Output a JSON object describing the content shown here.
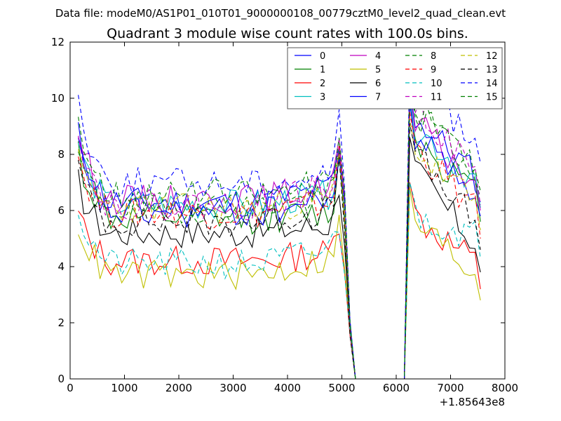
{
  "chart_data": {
    "type": "line",
    "suptitle": "Data file: modeM0/AS1P01_010T01_9000000108_00779cztM0_level2_quad_clean.evt",
    "title": "Quadrant 3 module wise count rates with 100.0s bins.",
    "xlabel": "",
    "ylabel": "",
    "x_offset_label": "+1.85643e8",
    "xlim": [
      0,
      8000
    ],
    "ylim": [
      0,
      12
    ],
    "x_ticks": [
      0,
      1000,
      2000,
      3000,
      4000,
      5000,
      6000,
      7000,
      8000
    ],
    "y_ticks": [
      0,
      2,
      4,
      6,
      8,
      10,
      12
    ],
    "legend_position": "upper-right",
    "x": [
      150,
      250,
      350,
      450,
      550,
      650,
      750,
      850,
      950,
      1050,
      1150,
      1250,
      1350,
      1450,
      1550,
      1650,
      1750,
      1850,
      1950,
      2050,
      2150,
      2250,
      2350,
      2450,
      2550,
      2650,
      2750,
      2850,
      2950,
      3050,
      3150,
      3250,
      3350,
      3450,
      3550,
      3650,
      3750,
      3850,
      3950,
      4050,
      4150,
      4250,
      4350,
      4450,
      4550,
      4650,
      4750,
      4850,
      4950,
      5050,
      5150,
      5250,
      5350,
      5450,
      5550,
      5650,
      5750,
      5850,
      5950,
      6050,
      6150,
      6250,
      6350,
      6450,
      6550,
      6650,
      6750,
      6850,
      6950,
      7050,
      7150,
      7250,
      7350,
      7450,
      7550
    ],
    "series": [
      {
        "name": "0",
        "color": "#0000ff",
        "style": "solid",
        "start": 8.7,
        "base": 6.3,
        "late": 6.8,
        "pre": 8.3,
        "peak": 10.5,
        "end": 6.3,
        "seed": 11
      },
      {
        "name": "1",
        "color": "#008000",
        "style": "solid",
        "start": 8.2,
        "base": 5.7,
        "late": 5.9,
        "pre": 7.8,
        "peak": 9.8,
        "end": 5.6,
        "seed": 12
      },
      {
        "name": "2",
        "color": "#ff0000",
        "style": "solid",
        "start": 5.9,
        "base": 4.2,
        "late": 4.5,
        "pre": 5.7,
        "peak": 7.0,
        "end": 3.2,
        "seed": 13
      },
      {
        "name": "3",
        "color": "#00bfbf",
        "style": "solid",
        "start": 8.5,
        "base": 6.2,
        "late": 6.6,
        "pre": 8.1,
        "peak": 10.2,
        "end": 6.1,
        "seed": 14
      },
      {
        "name": "4",
        "color": "#bf00bf",
        "style": "solid",
        "start": 8.9,
        "base": 6.4,
        "late": 6.9,
        "pre": 8.5,
        "peak": 10.3,
        "end": 6.0,
        "seed": 15
      },
      {
        "name": "5",
        "color": "#bfbf00",
        "style": "solid",
        "start": 5.6,
        "base": 3.7,
        "late": 4.3,
        "pre": 5.5,
        "peak": 6.8,
        "end": 2.8,
        "seed": 16
      },
      {
        "name": "6",
        "color": "#000000",
        "style": "solid",
        "start": 7.0,
        "base": 5.2,
        "late": 5.5,
        "pre": 7.0,
        "peak": 8.6,
        "end": 3.8,
        "seed": 17
      },
      {
        "name": "7",
        "color": "#0000ff",
        "style": "solid",
        "start": 8.3,
        "base": 5.9,
        "late": 6.4,
        "pre": 8.0,
        "peak": 9.9,
        "end": 5.8,
        "seed": 18
      },
      {
        "name": "8",
        "color": "#008000",
        "style": "dashed",
        "start": 8.0,
        "base": 6.1,
        "late": 6.5,
        "pre": 8.0,
        "peak": 10.7,
        "end": 6.5,
        "seed": 19
      },
      {
        "name": "9",
        "color": "#ff0000",
        "style": "dashed",
        "start": 8.0,
        "base": 5.9,
        "late": 6.3,
        "pre": 7.9,
        "peak": 9.5,
        "end": 5.0,
        "seed": 20
      },
      {
        "name": "10",
        "color": "#00bfbf",
        "style": "dashed",
        "start": 6.1,
        "base": 4.1,
        "late": 4.6,
        "pre": 5.6,
        "peak": 7.0,
        "end": 4.3,
        "seed": 21
      },
      {
        "name": "11",
        "color": "#bf00bf",
        "style": "dashed",
        "start": 9.1,
        "base": 6.2,
        "late": 6.8,
        "pre": 8.3,
        "peak": 11.1,
        "end": 6.2,
        "seed": 22
      },
      {
        "name": "12",
        "color": "#bfbf00",
        "style": "dashed",
        "start": 7.7,
        "base": 6.1,
        "late": 6.4,
        "pre": 7.8,
        "peak": 9.3,
        "end": 5.3,
        "seed": 23
      },
      {
        "name": "13",
        "color": "#000000",
        "style": "dashed",
        "start": 7.5,
        "base": 5.6,
        "late": 6.0,
        "pre": 7.4,
        "peak": 9.1,
        "end": 4.6,
        "seed": 24
      },
      {
        "name": "14",
        "color": "#0000ff",
        "style": "dashed",
        "start": 10.0,
        "base": 7.0,
        "late": 7.3,
        "pre": 9.9,
        "peak": 11.7,
        "end": 7.7,
        "seed": 25
      },
      {
        "name": "15",
        "color": "#008000",
        "style": "dashed",
        "start": 9.4,
        "base": 6.6,
        "late": 7.0,
        "pre": 8.6,
        "peak": 11.0,
        "end": 6.7,
        "seed": 26
      }
    ],
    "gap_start": 5250,
    "gap_end": 6150
  }
}
